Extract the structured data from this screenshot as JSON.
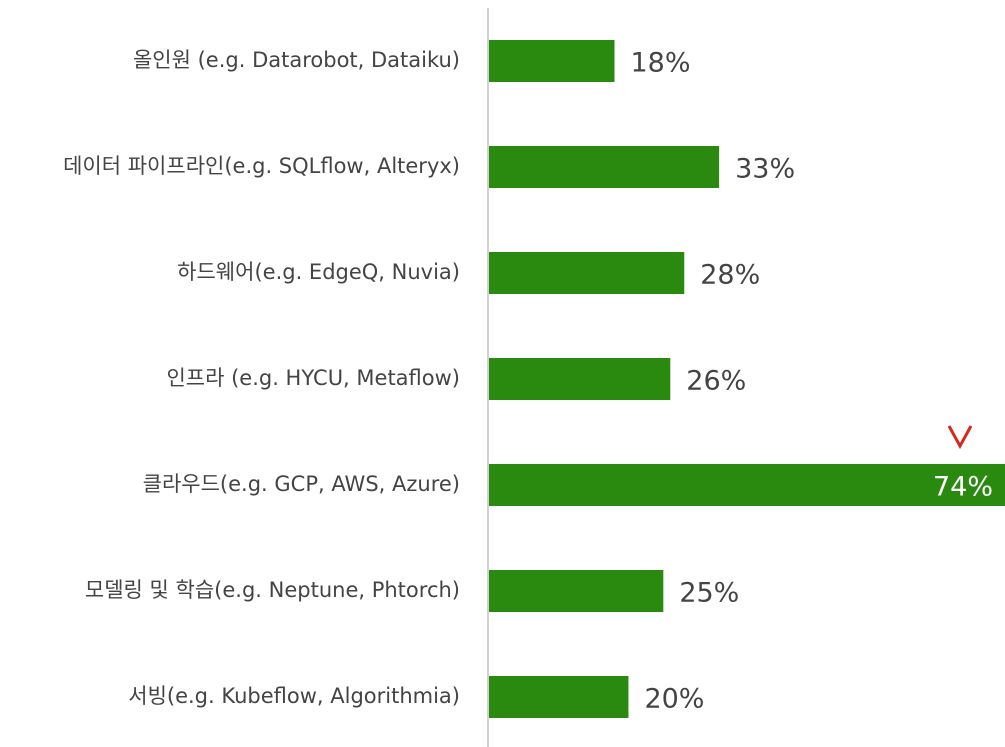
{
  "chart_data": {
    "type": "barh",
    "categories": [
      "올인원 (e.g. Datarobot, Dataiku)",
      "데이터 파이프라인(e.g. SQLflow, Alteryx)",
      "하드웨어(e.g. EdgeQ, Nuvia)",
      "인프라 (e.g. HYCU, Metaflow)",
      "클라우드(e.g. GCP, AWS, Azure)",
      "모델링 및 학습(e.g. Neptune, Phtorch)",
      "서빙(e.g. Kubeflow, Algorithmia)"
    ],
    "values": [
      18,
      33,
      28,
      26,
      74,
      25,
      20
    ],
    "value_labels": [
      "18%",
      "33%",
      "28%",
      "26%",
      "74%",
      "25%",
      "20%"
    ],
    "color": "#2a8a10",
    "xlim": [
      0,
      74
    ]
  }
}
